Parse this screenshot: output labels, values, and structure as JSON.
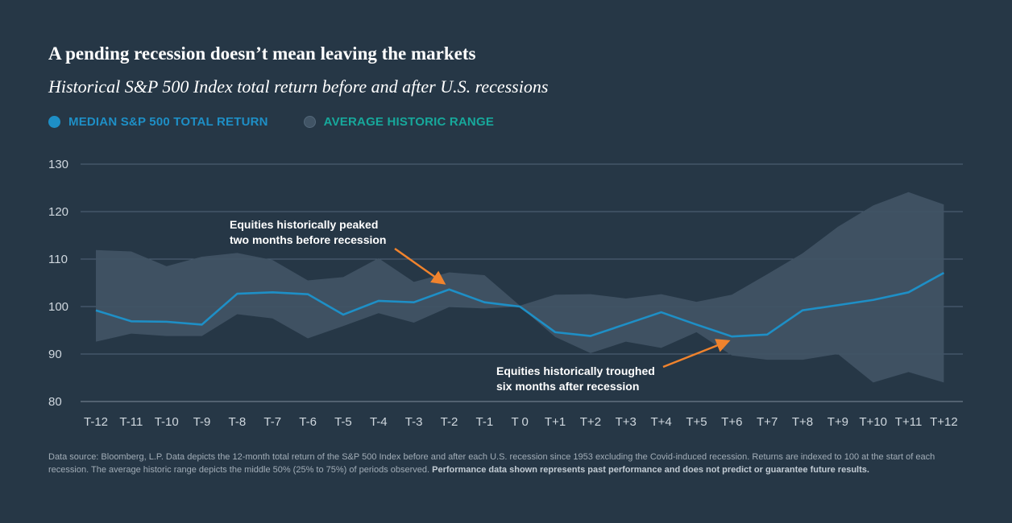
{
  "title": "A pending recession doesn’t mean leaving the markets",
  "subtitle": "Historical S&P 500 Index total return before and after U.S. recessions",
  "legend": {
    "line_label": "MEDIAN S&P 500 TOTAL RETURN",
    "range_label": "AVERAGE HISTORIC RANGE",
    "line_color": "#1e8fc6",
    "range_color": "#415465",
    "range_label_color": "#17a89b"
  },
  "chart_data": {
    "type": "line",
    "x": [
      "T-12",
      "T-11",
      "T-10",
      "T-9",
      "T-8",
      "T-7",
      "T-6",
      "T-5",
      "T-4",
      "T-3",
      "T-2",
      "T-1",
      "T 0",
      "T+1",
      "T+2",
      "T+3",
      "T+4",
      "T+5",
      "T+6",
      "T+7",
      "T+8",
      "T+9",
      "T+10",
      "T+11",
      "T+12"
    ],
    "series": [
      {
        "name": "MEDIAN S&P 500 TOTAL RETURN",
        "color": "#1e8fc6",
        "values": [
          99.2,
          96.9,
          96.8,
          96.2,
          102.7,
          103.0,
          102.6,
          98.3,
          101.2,
          100.9,
          103.6,
          100.9,
          100.0,
          94.6,
          93.8,
          96.3,
          98.8,
          96.2,
          93.7,
          94.1,
          99.2,
          100.3,
          101.4,
          103.0,
          107.1
        ]
      },
      {
        "name": "AVERAGE HISTORIC RANGE",
        "type": "band",
        "color": "#415465",
        "upper": [
          111.9,
          111.6,
          108.5,
          110.5,
          111.3,
          109.8,
          105.5,
          106.2,
          110.2,
          105.2,
          107.2,
          106.6,
          100.2,
          102.5,
          102.6,
          101.7,
          102.6,
          101.0,
          102.5,
          106.8,
          111.2,
          116.8,
          121.3,
          124.1,
          121.5
        ],
        "lower": [
          92.6,
          94.3,
          93.8,
          93.8,
          98.4,
          97.5,
          93.3,
          95.9,
          98.6,
          96.6,
          99.9,
          99.6,
          100.0,
          93.6,
          90.2,
          92.6,
          91.3,
          94.6,
          89.7,
          88.8,
          88.8,
          90.0,
          84.0,
          86.2,
          84.0
        ]
      }
    ],
    "ylim": [
      80,
      130
    ],
    "yticks": [
      80,
      90,
      100,
      110,
      120,
      130
    ],
    "grid": true,
    "annotations": [
      {
        "line1": "Equities historically peaked",
        "line2": "two months before recession",
        "points_to": "T-2"
      },
      {
        "line1": "Equities historically troughed",
        "line2": "six months after recession",
        "points_to": "T+6"
      }
    ],
    "annotation_arrow_color": "#f0832d"
  },
  "footnote": {
    "text": "Data source: Bloomberg, L.P. Data depicts the 12-month total return of the S&P 500 Index before and after each U.S. recession since 1953 excluding the Covid-induced recession. Returns are indexed to 100 at the start of each recession. The average historic range depicts the middle 50% (25% to 75%) of periods observed. ",
    "bold": "Performance data shown represents past performance and does not predict or guarantee future results."
  }
}
